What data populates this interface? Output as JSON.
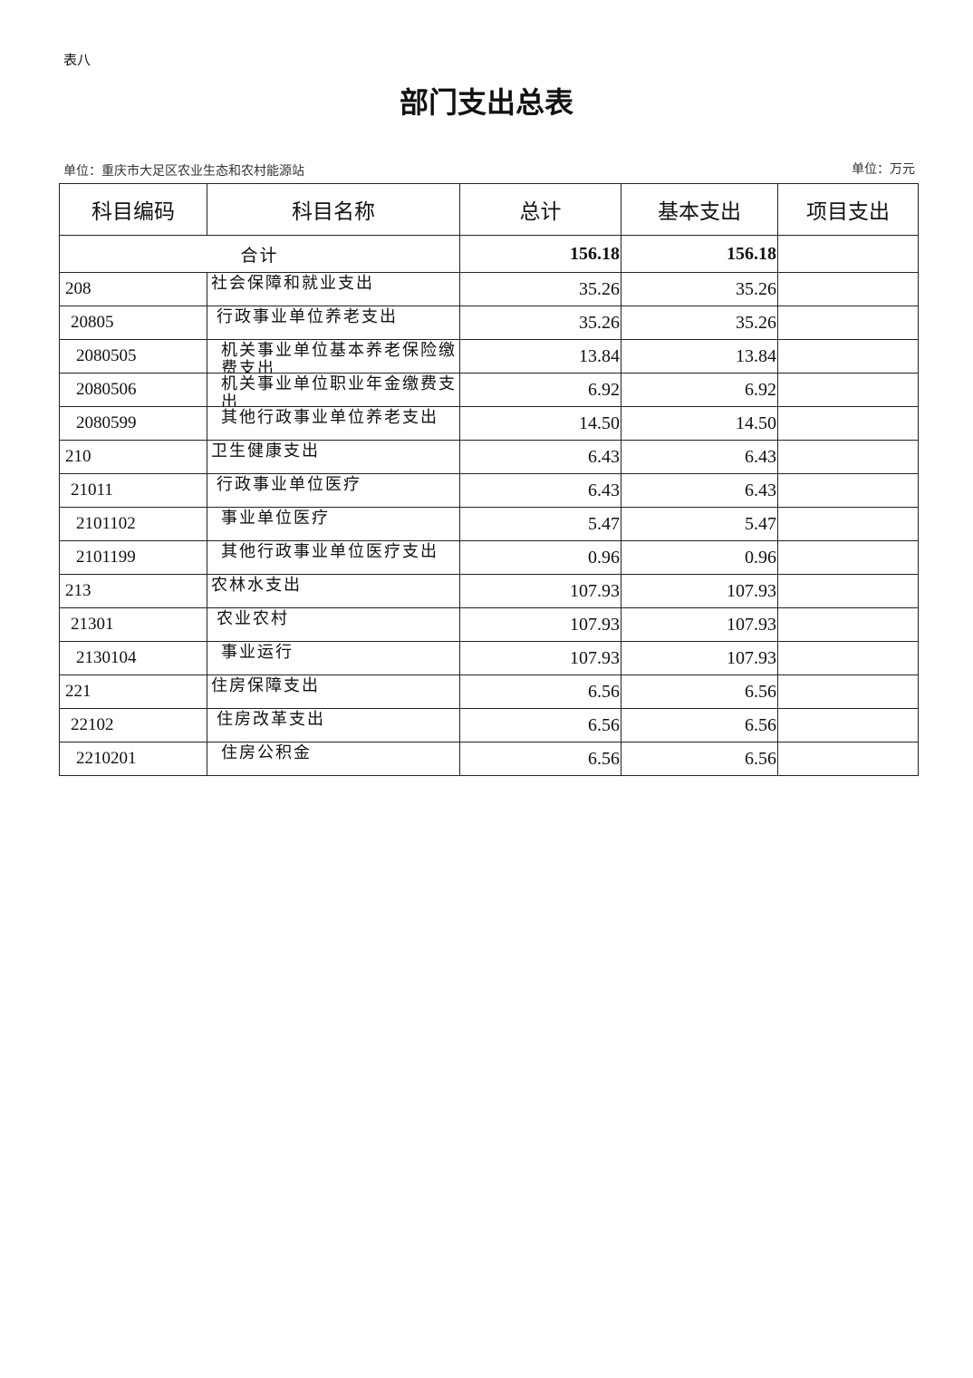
{
  "tag": "表八",
  "title": "部门支出总表",
  "unit_left": "单位：重庆市大足区农业生态和农村能源站",
  "unit_right": "单位：万元",
  "headers": [
    "科目编码",
    "科目名称",
    "总计",
    "基本支出",
    "项目支出"
  ],
  "total": {
    "label": "合计",
    "total": "156.18",
    "basic": "156.18",
    "project": ""
  },
  "rows": [
    {
      "code": "208",
      "name": "社会保障和就业支出",
      "total": "35.26",
      "basic": "35.26",
      "project": "",
      "level": 1
    },
    {
      "code": "20805",
      "name": "行政事业单位养老支出",
      "total": "35.26",
      "basic": "35.26",
      "project": "",
      "level": 2
    },
    {
      "code": "2080505",
      "name": "机关事业单位基本养老保险缴费支出",
      "total": "13.84",
      "basic": "13.84",
      "project": "",
      "level": 3
    },
    {
      "code": "2080506",
      "name": "机关事业单位职业年金缴费支出",
      "total": "6.92",
      "basic": "6.92",
      "project": "",
      "level": 3
    },
    {
      "code": "2080599",
      "name": "其他行政事业单位养老支出",
      "total": "14.50",
      "basic": "14.50",
      "project": "",
      "level": 3
    },
    {
      "code": "210",
      "name": "卫生健康支出",
      "total": "6.43",
      "basic": "6.43",
      "project": "",
      "level": 1
    },
    {
      "code": "21011",
      "name": "行政事业单位医疗",
      "total": "6.43",
      "basic": "6.43",
      "project": "",
      "level": 2
    },
    {
      "code": "2101102",
      "name": "事业单位医疗",
      "total": "5.47",
      "basic": "5.47",
      "project": "",
      "level": 3
    },
    {
      "code": "2101199",
      "name": "其他行政事业单位医疗支出",
      "total": "0.96",
      "basic": "0.96",
      "project": "",
      "level": 3
    },
    {
      "code": "213",
      "name": "农林水支出",
      "total": "107.93",
      "basic": "107.93",
      "project": "",
      "level": 1
    },
    {
      "code": "21301",
      "name": "农业农村",
      "total": "107.93",
      "basic": "107.93",
      "project": "",
      "level": 2
    },
    {
      "code": "2130104",
      "name": "事业运行",
      "total": "107.93",
      "basic": "107.93",
      "project": "",
      "level": 3
    },
    {
      "code": "221",
      "name": "住房保障支出",
      "total": "6.56",
      "basic": "6.56",
      "project": "",
      "level": 1
    },
    {
      "code": "22102",
      "name": "住房改革支出",
      "total": "6.56",
      "basic": "6.56",
      "project": "",
      "level": 2
    },
    {
      "code": "2210201",
      "name": "住房公积金",
      "total": "6.56",
      "basic": "6.56",
      "project": "",
      "level": 3
    }
  ]
}
